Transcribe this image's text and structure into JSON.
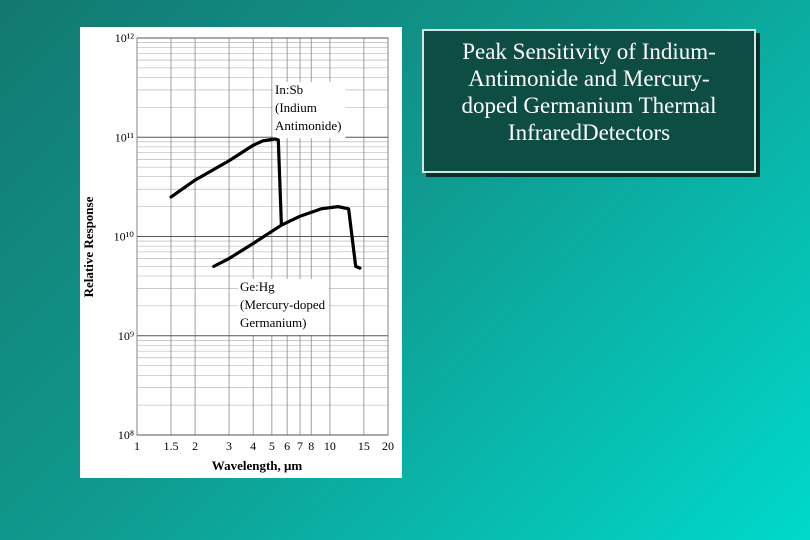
{
  "slide_title": [
    "Peak Sensitivity of Indium-",
    "Antimonide and Mercury-",
    "doped Germanium Thermal",
    "InfraredDetectors"
  ],
  "chart_data": {
    "type": "line",
    "x_label": "Wavelength, μm",
    "y_label": "Relative Response",
    "xscale": "log",
    "yscale": "log",
    "grid": true,
    "xlim": [
      1,
      20
    ],
    "xticks": [
      1,
      1.5,
      2,
      3,
      4,
      5,
      6,
      7,
      8,
      10,
      15,
      20
    ],
    "ylim": [
      100000000,
      1000000000000
    ],
    "yticks": [
      {
        "value": 100000000,
        "label": "10⁸"
      },
      {
        "value": 1000000000,
        "label": "10⁹"
      },
      {
        "value": 10000000000,
        "label": "10¹⁰"
      },
      {
        "value": 100000000000,
        "label": "10¹¹"
      },
      {
        "value": 1000000000000,
        "label": "10¹²"
      }
    ],
    "series": [
      {
        "name": [
          "In:Sb",
          "(Indium",
          "Antimonide)"
        ],
        "color": "#000000",
        "x": [
          1.5,
          2,
          3,
          4,
          4.5,
          5.2,
          5.4,
          5.6
        ],
        "values": [
          25000000000,
          37000000000,
          58000000000,
          83000000000,
          92000000000,
          96000000000,
          94000000000,
          13500000000
        ]
      },
      {
        "name": [
          "Ge:Hg",
          "(Mercury-doped",
          "Germanium)"
        ],
        "color": "#000000",
        "x": [
          2.5,
          3,
          4,
          5.6,
          7,
          9,
          11,
          12.5,
          13.2,
          13.6,
          14.3
        ],
        "values": [
          5000000000,
          6000000000,
          8500000000,
          13000000000,
          16000000000,
          19000000000,
          20000000000,
          19000000000,
          8000000000,
          5000000000,
          4800000000
        ]
      }
    ]
  }
}
